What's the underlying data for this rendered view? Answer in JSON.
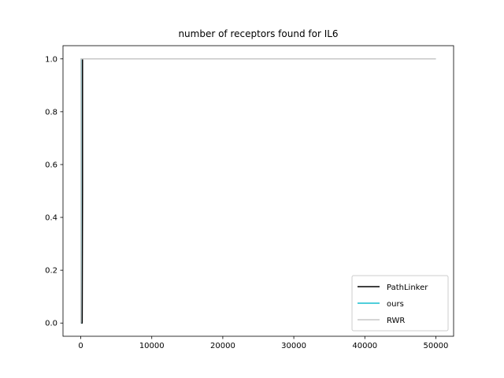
{
  "chart_data": {
    "type": "line",
    "title": "number of receptors found for IL6",
    "xlabel": "",
    "ylabel": "",
    "xlim": [
      -2500,
      52500
    ],
    "ylim": [
      -0.05,
      1.05
    ],
    "xticks": [
      0,
      10000,
      20000,
      30000,
      40000,
      50000
    ],
    "xtick_labels": [
      "0",
      "10000",
      "20000",
      "30000",
      "40000",
      "50000"
    ],
    "yticks": [
      0.0,
      0.2,
      0.4,
      0.6,
      0.8,
      1.0
    ],
    "ytick_labels": [
      "0.0",
      "0.2",
      "0.4",
      "0.6",
      "0.8",
      "1.0"
    ],
    "grid": false,
    "legend_position": "bottom-right",
    "series": [
      {
        "name": "PathLinker",
        "color": "#000000",
        "x": [
          0,
          100,
          200,
          250,
          250,
          50000
        ],
        "y": [
          0.0,
          0.0,
          0.0,
          0.5,
          1.0,
          1.0
        ]
      },
      {
        "name": "ours",
        "color": "#17becf",
        "x": [
          0,
          30,
          60,
          60,
          50000
        ],
        "y": [
          0.0,
          0.0,
          0.5,
          1.0,
          1.0
        ]
      },
      {
        "name": "RWR",
        "color": "#c7c7c7",
        "x": [
          0,
          20,
          40,
          40,
          50000
        ],
        "y": [
          0.0,
          0.0,
          0.5,
          1.0,
          1.0
        ]
      }
    ]
  }
}
